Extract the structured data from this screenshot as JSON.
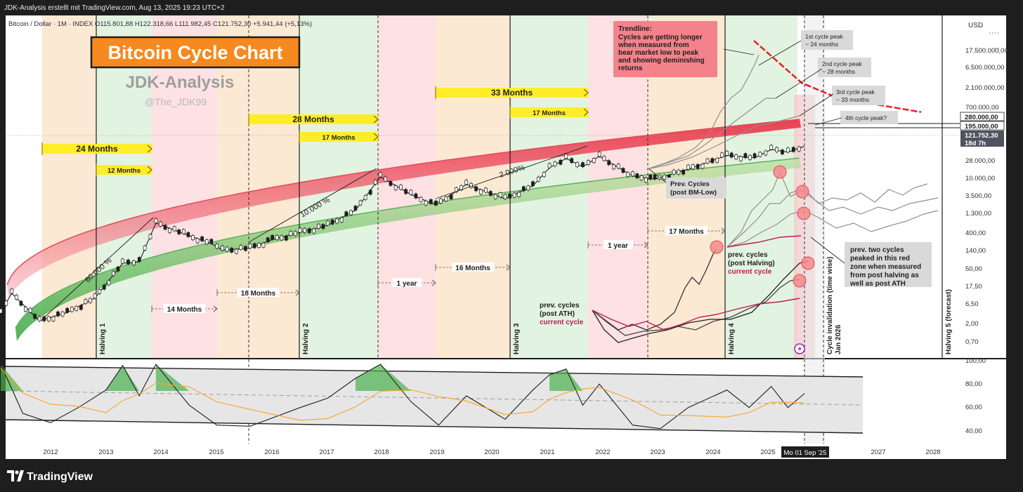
{
  "header": {
    "caption": "JDK-Analysis erstellt mit TradingView.com, Aug 13, 2025 19:23 UTC+2",
    "symbol_line": "Bitcoin / Dollar · 1M · INDEX  O115.801,88  H122.318,66  L111.982,45  C121.752,30  +5.941,44 (+5,13%)"
  },
  "branding": {
    "title": "Bitcoin Cycle Chart",
    "watermark": "JDK-Analysis",
    "handle": "@The_JDK99",
    "footer_logo": "TradingView",
    "currency": "USD"
  },
  "colors": {
    "orange_band": "#fce9d3",
    "green_band": "#e3f3e1",
    "red_band": "#fde1e3",
    "red_channel": "#e34b59",
    "green_channel": "#58b35c",
    "title_bg": "#f6891f",
    "yellow": "#ffed2a",
    "osc_fill": "#e6e6e6"
  },
  "chart_data": {
    "type": "line",
    "title": "Bitcoin Cycle Chart",
    "scale": "log",
    "x_ticks": [
      "2012",
      "2013",
      "2014",
      "2015",
      "2016",
      "2017",
      "2018",
      "2019",
      "2020",
      "2021",
      "2022",
      "2023",
      "2024",
      "2025",
      "2027",
      "2028"
    ],
    "x_cursor_label": "Mo 01 Sep '25",
    "y_ticks": [
      "17.500.000,00",
      "6.500.000,00",
      "2.100.000,00",
      "700.000,00",
      "28.000,00",
      "10.000,00",
      "3.500,00",
      "1.300,00",
      "400,00",
      "140,00",
      "50,00",
      "17,50",
      "6,50",
      "2,00",
      "0,70"
    ],
    "y_markers": [
      {
        "label": "280.000,00",
        "style": "white"
      },
      {
        "label": "195.000,00",
        "style": "white"
      },
      {
        "label": "121.752,30",
        "style": "dark"
      },
      {
        "label": "18d 7h",
        "style": "dark"
      }
    ],
    "osc_ticks": [
      "100,00",
      "80,00",
      "60,00",
      "40,00"
    ],
    "halvings": [
      {
        "label": "Halving 1",
        "year": 2012.9
      },
      {
        "label": "Halving 2",
        "year": 2016.5
      },
      {
        "label": "Halving 3",
        "year": 2020.4
      },
      {
        "label": "Halving 4",
        "year": 2024.3
      },
      {
        "label": "Halving 5 (forecast)",
        "year": 2028.2
      }
    ],
    "cycle_invalidation": {
      "label": "Cycle invalidation (time wise)",
      "date": "Jan 2026"
    },
    "durations": [
      {
        "label": "24 Months",
        "kind": "yellow",
        "from": 2011.5,
        "to": 2013.8
      },
      {
        "label": "12 Months",
        "kind": "yellow",
        "from": 2012.8,
        "to": 2013.8
      },
      {
        "label": "28 Months",
        "kind": "yellow",
        "from": 2015.6,
        "to": 2017.9
      },
      {
        "label": "17 Months",
        "kind": "yellow",
        "from": 2016.5,
        "to": 2017.9
      },
      {
        "label": "33 Months",
        "kind": "yellow",
        "from": 2018.9,
        "to": 2021.7
      },
      {
        "label": "17 Months",
        "kind": "yellow",
        "from": 2020.3,
        "to": 2021.7
      },
      {
        "label": "14 Months",
        "kind": "plain",
        "from": 2012.9,
        "to": 2014.0
      },
      {
        "label": "18 Months",
        "kind": "plain",
        "from": 2014.1,
        "to": 2015.6
      },
      {
        "label": "1 year",
        "kind": "plain",
        "from": 2017.9,
        "to": 2018.9
      },
      {
        "label": "16 Months",
        "kind": "plain",
        "from": 2019.0,
        "to": 2020.3
      },
      {
        "label": "1 year",
        "kind": "plain",
        "from": 2021.7,
        "to": 2022.9
      },
      {
        "label": "17 Months",
        "kind": "plain",
        "from": 2022.9,
        "to": 2024.2
      }
    ],
    "growth_labels": [
      "60.000 %",
      "10.000 %",
      "2.000%"
    ],
    "cycle_peaks": [
      {
        "label": "1st cycle peak",
        "sub": "~ 24 months"
      },
      {
        "label": "2nd cycle peak",
        "sub": "~ 28 months"
      },
      {
        "label": "3rd cycle peak",
        "sub": "~ 33 months"
      },
      {
        "label": "4th cycle peak?",
        "sub": ""
      }
    ],
    "annotations": {
      "trendline_title": "Trendline:",
      "trendline_lines": [
        "Cycles are getting longer",
        "when measured from",
        "bear market low to peak",
        "and showing deminishing",
        "returns"
      ],
      "prev_bm_lines": [
        "Prev. Cycles",
        "(post BM-Low)"
      ],
      "post_halving_lines": [
        "prev. cycles",
        "(post Halving)"
      ],
      "post_halving_current": "current cycle",
      "post_ath_lines": [
        "prev. cycles",
        "(post ATH)"
      ],
      "post_ath_current": "current cycle",
      "red_zone_lines": [
        "prev. two cycles",
        "peaked in this red",
        "zone when measured",
        "from post halving as",
        "well as post ATH"
      ]
    },
    "price_path": [
      {
        "x": 2011.0,
        "y": 3
      },
      {
        "x": 2011.3,
        "y": 16
      },
      {
        "x": 2011.8,
        "y": 3
      },
      {
        "x": 2012.3,
        "y": 5
      },
      {
        "x": 2012.8,
        "y": 12
      },
      {
        "x": 2013.3,
        "y": 100
      },
      {
        "x": 2013.6,
        "y": 110
      },
      {
        "x": 2013.9,
        "y": 1150
      },
      {
        "x": 2014.4,
        "y": 600
      },
      {
        "x": 2014.9,
        "y": 330
      },
      {
        "x": 2015.1,
        "y": 220
      },
      {
        "x": 2015.6,
        "y": 250
      },
      {
        "x": 2016.0,
        "y": 420
      },
      {
        "x": 2016.5,
        "y": 650
      },
      {
        "x": 2017.0,
        "y": 1000
      },
      {
        "x": 2017.5,
        "y": 2500
      },
      {
        "x": 2017.95,
        "y": 19000
      },
      {
        "x": 2018.5,
        "y": 6500
      },
      {
        "x": 2018.95,
        "y": 3400
      },
      {
        "x": 2019.5,
        "y": 12000
      },
      {
        "x": 2020.2,
        "y": 5000
      },
      {
        "x": 2020.7,
        "y": 11000
      },
      {
        "x": 2021.0,
        "y": 33000
      },
      {
        "x": 2021.3,
        "y": 58000
      },
      {
        "x": 2021.6,
        "y": 35000
      },
      {
        "x": 2021.9,
        "y": 66000
      },
      {
        "x": 2022.5,
        "y": 20000
      },
      {
        "x": 2022.9,
        "y": 16500
      },
      {
        "x": 2023.5,
        "y": 30000
      },
      {
        "x": 2024.2,
        "y": 70000
      },
      {
        "x": 2024.7,
        "y": 60000
      },
      {
        "x": 2025.0,
        "y": 100000
      },
      {
        "x": 2025.3,
        "y": 85000
      },
      {
        "x": 2025.6,
        "y": 121752
      }
    ],
    "red_trendline": [
      {
        "x": 2024.7,
        "y": 10000000
      },
      {
        "x": 2024.9,
        "y": 3000000
      },
      {
        "x": 2025.1,
        "y": 900000
      },
      {
        "x": 2025.4,
        "y": 380000
      },
      {
        "x": 2025.8,
        "y": 240000
      },
      {
        "x": 2026.1,
        "y": 170000
      }
    ],
    "oscillator": [
      {
        "x": 2011.1,
        "y": 97
      },
      {
        "x": 2011.5,
        "y": 55
      },
      {
        "x": 2012.0,
        "y": 47
      },
      {
        "x": 2012.5,
        "y": 60
      },
      {
        "x": 2013.0,
        "y": 75
      },
      {
        "x": 2013.3,
        "y": 96
      },
      {
        "x": 2013.6,
        "y": 70
      },
      {
        "x": 2013.9,
        "y": 97
      },
      {
        "x": 2014.5,
        "y": 62
      },
      {
        "x": 2015.0,
        "y": 45
      },
      {
        "x": 2015.6,
        "y": 44
      },
      {
        "x": 2016.5,
        "y": 60
      },
      {
        "x": 2017.0,
        "y": 68
      },
      {
        "x": 2017.5,
        "y": 85
      },
      {
        "x": 2017.95,
        "y": 97
      },
      {
        "x": 2018.5,
        "y": 65
      },
      {
        "x": 2019.0,
        "y": 45
      },
      {
        "x": 2019.5,
        "y": 70
      },
      {
        "x": 2020.2,
        "y": 50
      },
      {
        "x": 2020.7,
        "y": 75
      },
      {
        "x": 2021.0,
        "y": 88
      },
      {
        "x": 2021.3,
        "y": 93
      },
      {
        "x": 2021.6,
        "y": 62
      },
      {
        "x": 2021.9,
        "y": 80
      },
      {
        "x": 2022.5,
        "y": 45
      },
      {
        "x": 2023.0,
        "y": 42
      },
      {
        "x": 2023.5,
        "y": 60
      },
      {
        "x": 2024.2,
        "y": 75
      },
      {
        "x": 2024.6,
        "y": 60
      },
      {
        "x": 2025.0,
        "y": 78
      },
      {
        "x": 2025.3,
        "y": 60
      },
      {
        "x": 2025.6,
        "y": 72
      }
    ]
  }
}
